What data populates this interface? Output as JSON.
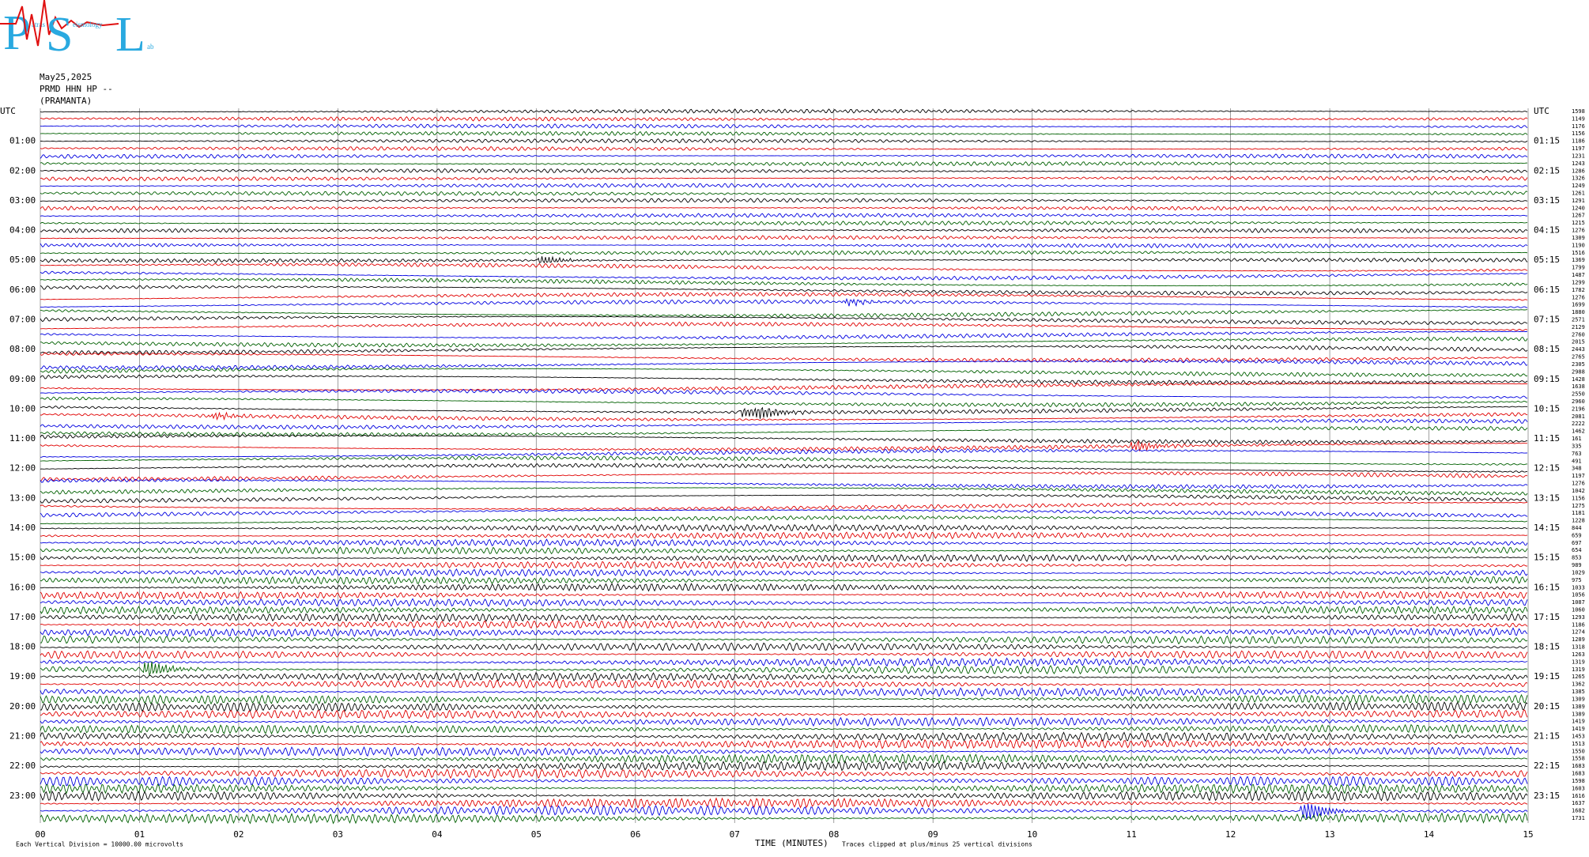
{
  "logo": {
    "p": "P",
    "s": "S",
    "l": "L",
    "p_rest": "atras",
    "s_rest": "eismology",
    "l_rest": "ab"
  },
  "header": {
    "date": "May25,2025",
    "station": "PRMD HHN HP --",
    "location": "(PRAMANTA)"
  },
  "plot": {
    "left_labels": [
      "UTC",
      "01:00",
      "02:00",
      "03:00",
      "04:00",
      "05:00",
      "06:00",
      "07:00",
      "08:00",
      "09:00",
      "10:00",
      "11:00",
      "12:00",
      "13:00",
      "14:00",
      "15:00",
      "16:00",
      "17:00",
      "18:00",
      "19:00",
      "20:00",
      "21:00",
      "22:00",
      "23:00"
    ],
    "right_labels": [
      "UTC",
      "01:15",
      "02:15",
      "03:15",
      "04:15",
      "05:15",
      "06:15",
      "07:15",
      "08:15",
      "09:15",
      "10:15",
      "11:15",
      "12:15",
      "13:15",
      "14:15",
      "15:15",
      "16:15",
      "17:15",
      "18:15",
      "19:15",
      "20:15",
      "21:15",
      "22:15",
      "23:15"
    ],
    "x_ticks": [
      "00",
      "01",
      "02",
      "03",
      "04",
      "05",
      "06",
      "07",
      "08",
      "09",
      "10",
      "11",
      "12",
      "13",
      "14",
      "15"
    ],
    "x_label": "TIME (MINUTES)",
    "scale_note": "Each Vertical Division = 10000.00 microvolts",
    "clip_note": "Traces clipped at plus/minus 25 vertical divisions",
    "trace_colors": [
      "#000000",
      "#e00000",
      "#0000e0",
      "#006000"
    ],
    "trace_values": [
      1598,
      1149,
      1176,
      1156,
      1186,
      1197,
      1231,
      1243,
      1286,
      1326,
      1249,
      1261,
      1291,
      1240,
      1267,
      1215,
      1276,
      1309,
      1190,
      1516,
      1369,
      1799,
      1487,
      1299,
      1782,
      1276,
      1699,
      1880,
      2571,
      2129,
      2760,
      2015,
      2443,
      2765,
      2305,
      2988,
      1428,
      1638,
      2550,
      2960,
      2196,
      2081,
      2222,
      1462,
      161,
      335,
      763,
      491,
      348,
      1197,
      1276,
      1042,
      1156,
      1275,
      1181,
      1228,
      844,
      659,
      697,
      654,
      853,
      989,
      1029,
      975,
      1033,
      1056,
      1087,
      1060,
      1293,
      1186,
      1274,
      1289,
      1318,
      1263,
      1319,
      1319,
      1265,
      1362,
      1385,
      1309,
      1389,
      1389,
      1419,
      1419,
      1453,
      1513,
      1550,
      1558,
      1683,
      1683,
      1598,
      1603,
      1616,
      1637,
      1682,
      1731
    ]
  }
}
